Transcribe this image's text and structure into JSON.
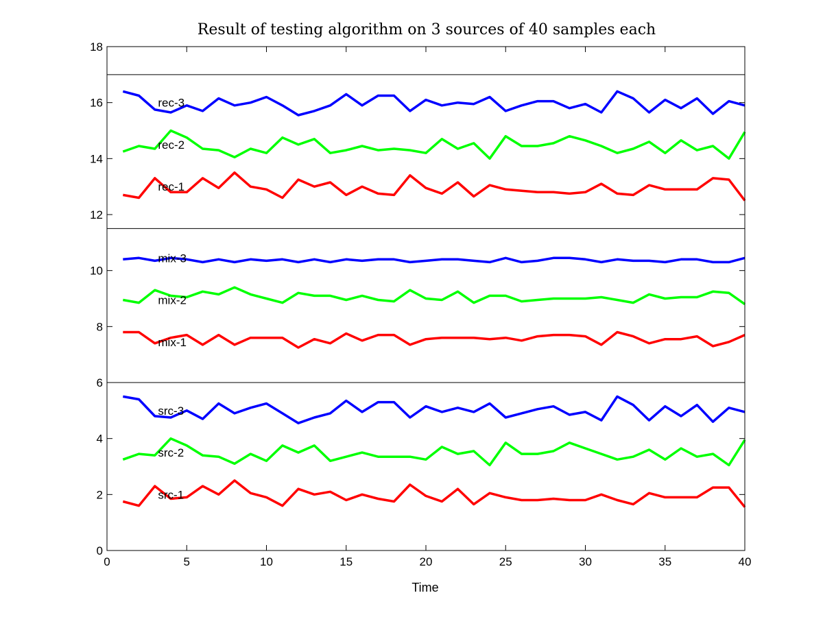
{
  "chart_data": {
    "type": "line",
    "title": "Result of testing algorithm on 3 sources of 40 samples each",
    "xlabel": "Time",
    "ylabel": "",
    "xlim": [
      0,
      40
    ],
    "ylim": [
      0,
      18
    ],
    "xticks": [
      0,
      5,
      10,
      15,
      20,
      25,
      30,
      35,
      40
    ],
    "yticks": [
      0,
      2,
      4,
      6,
      8,
      10,
      12,
      14,
      16,
      18
    ],
    "separators": [
      6,
      11.5,
      17
    ],
    "grid": false,
    "legend": "none",
    "x": [
      1,
      2,
      3,
      4,
      5,
      6,
      7,
      8,
      9,
      10,
      11,
      12,
      13,
      14,
      15,
      16,
      17,
      18,
      19,
      20,
      21,
      22,
      23,
      24,
      25,
      26,
      27,
      28,
      29,
      30,
      31,
      32,
      33,
      34,
      35,
      36,
      37,
      38,
      39,
      40
    ],
    "series": [
      {
        "name": "src-1",
        "label_x": 3.2,
        "label_y": 2.0,
        "color": "#ff0000",
        "values": [
          1.75,
          1.6,
          2.3,
          1.85,
          1.9,
          2.3,
          2.0,
          2.5,
          2.05,
          1.9,
          1.6,
          2.2,
          2.0,
          2.1,
          1.8,
          2.0,
          1.85,
          1.75,
          2.35,
          1.95,
          1.75,
          2.2,
          1.65,
          2.05,
          1.9,
          1.8,
          1.8,
          1.85,
          1.8,
          1.8,
          2.0,
          1.8,
          1.65,
          2.05,
          1.9,
          1.9,
          1.9,
          2.25,
          2.25,
          1.55
        ]
      },
      {
        "name": "src-2",
        "label_x": 3.2,
        "label_y": 3.5,
        "color": "#00ff00",
        "values": [
          3.25,
          3.45,
          3.4,
          4.0,
          3.75,
          3.4,
          3.35,
          3.1,
          3.45,
          3.2,
          3.75,
          3.5,
          3.75,
          3.2,
          3.35,
          3.5,
          3.35,
          3.35,
          3.35,
          3.25,
          3.7,
          3.45,
          3.55,
          3.05,
          3.85,
          3.45,
          3.45,
          3.55,
          3.85,
          3.65,
          3.45,
          3.25,
          3.35,
          3.6,
          3.25,
          3.65,
          3.35,
          3.45,
          3.05,
          3.95
        ]
      },
      {
        "name": "src-3",
        "label_x": 3.2,
        "label_y": 5.0,
        "color": "#0000ff",
        "values": [
          5.5,
          5.4,
          4.8,
          4.75,
          5.0,
          4.7,
          5.25,
          4.9,
          5.1,
          5.25,
          4.9,
          4.55,
          4.75,
          4.9,
          5.35,
          4.95,
          5.3,
          5.3,
          4.75,
          5.15,
          4.95,
          5.1,
          4.95,
          5.25,
          4.75,
          4.9,
          5.05,
          5.15,
          4.85,
          4.95,
          4.65,
          5.5,
          5.2,
          4.65,
          5.15,
          4.8,
          5.2,
          4.6,
          5.1,
          4.95
        ]
      },
      {
        "name": "mix-1",
        "label_x": 3.2,
        "label_y": 7.45,
        "color": "#ff0000",
        "values": [
          7.8,
          7.8,
          7.4,
          7.6,
          7.7,
          7.35,
          7.7,
          7.35,
          7.6,
          7.6,
          7.6,
          7.25,
          7.55,
          7.4,
          7.75,
          7.5,
          7.7,
          7.7,
          7.35,
          7.55,
          7.6,
          7.6,
          7.6,
          7.55,
          7.6,
          7.5,
          7.65,
          7.7,
          7.7,
          7.65,
          7.35,
          7.8,
          7.65,
          7.4,
          7.55,
          7.55,
          7.65,
          7.3,
          7.45,
          7.7
        ]
      },
      {
        "name": "mix-2",
        "label_x": 3.2,
        "label_y": 8.95,
        "color": "#00ff00",
        "values": [
          8.95,
          8.85,
          9.3,
          9.1,
          9.05,
          9.25,
          9.15,
          9.4,
          9.15,
          9.0,
          8.85,
          9.2,
          9.1,
          9.1,
          8.95,
          9.1,
          8.95,
          8.9,
          9.3,
          9.0,
          8.95,
          9.25,
          8.85,
          9.1,
          9.1,
          8.9,
          8.95,
          9.0,
          9.0,
          9.0,
          9.05,
          8.95,
          8.85,
          9.15,
          9.0,
          9.05,
          9.05,
          9.25,
          9.2,
          8.8
        ]
      },
      {
        "name": "mix-3",
        "label_x": 3.2,
        "label_y": 10.45,
        "color": "#0000ff",
        "values": [
          10.4,
          10.45,
          10.35,
          10.45,
          10.4,
          10.3,
          10.4,
          10.3,
          10.4,
          10.35,
          10.4,
          10.3,
          10.4,
          10.3,
          10.4,
          10.35,
          10.4,
          10.4,
          10.3,
          10.35,
          10.4,
          10.4,
          10.35,
          10.3,
          10.45,
          10.3,
          10.35,
          10.45,
          10.45,
          10.4,
          10.3,
          10.4,
          10.35,
          10.35,
          10.3,
          10.4,
          10.4,
          10.3,
          10.3,
          10.45
        ]
      },
      {
        "name": "rec-1",
        "label_x": 3.2,
        "label_y": 13.0,
        "color": "#ff0000",
        "values": [
          12.7,
          12.6,
          13.3,
          12.8,
          12.8,
          13.3,
          12.95,
          13.5,
          13.0,
          12.9,
          12.6,
          13.25,
          13.0,
          13.15,
          12.7,
          13.0,
          12.75,
          12.7,
          13.4,
          12.95,
          12.75,
          13.15,
          12.65,
          13.05,
          12.9,
          12.85,
          12.8,
          12.8,
          12.75,
          12.8,
          13.1,
          12.75,
          12.7,
          13.05,
          12.9,
          12.9,
          12.9,
          13.3,
          13.25,
          12.5
        ]
      },
      {
        "name": "rec-2",
        "label_x": 3.2,
        "label_y": 14.5,
        "color": "#00ff00",
        "values": [
          14.25,
          14.45,
          14.35,
          15.0,
          14.75,
          14.35,
          14.3,
          14.05,
          14.35,
          14.2,
          14.75,
          14.5,
          14.7,
          14.2,
          14.3,
          14.45,
          14.3,
          14.35,
          14.3,
          14.2,
          14.7,
          14.35,
          14.55,
          14.0,
          14.8,
          14.45,
          14.45,
          14.55,
          14.8,
          14.65,
          14.45,
          14.2,
          14.35,
          14.6,
          14.2,
          14.65,
          14.3,
          14.45,
          14.0,
          14.95
        ]
      },
      {
        "name": "rec-3",
        "label_x": 3.2,
        "label_y": 16.0,
        "color": "#0000ff",
        "values": [
          16.4,
          16.25,
          15.75,
          15.65,
          15.9,
          15.7,
          16.15,
          15.9,
          16.0,
          16.2,
          15.9,
          15.55,
          15.7,
          15.9,
          16.3,
          15.9,
          16.25,
          16.25,
          15.7,
          16.1,
          15.9,
          16.0,
          15.95,
          16.2,
          15.7,
          15.9,
          16.05,
          16.05,
          15.8,
          15.95,
          15.65,
          16.4,
          16.15,
          15.65,
          16.1,
          15.8,
          16.15,
          15.6,
          16.05,
          15.9
        ]
      }
    ]
  }
}
